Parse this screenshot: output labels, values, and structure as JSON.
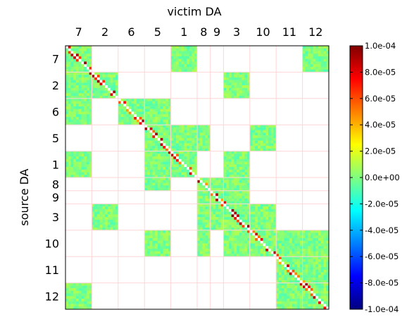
{
  "chart_data": {
    "type": "heatmap",
    "title": "",
    "xlabel": "victim DA",
    "ylabel": "source DA",
    "x_axis_position": "top",
    "order": [
      "7",
      "2",
      "6",
      "5",
      "1",
      "8",
      "9",
      "3",
      "10",
      "11",
      "12"
    ],
    "block_sizes": [
      10,
      10,
      10,
      10,
      10,
      5,
      5,
      10,
      10,
      10,
      10
    ],
    "blocks": [
      {
        "source": "7",
        "victims": [
          "7",
          "1",
          "12"
        ]
      },
      {
        "source": "2",
        "victims": [
          "7",
          "2",
          "3"
        ]
      },
      {
        "source": "6",
        "victims": [
          "7",
          "6",
          "5"
        ]
      },
      {
        "source": "5",
        "victims": [
          "5",
          "1",
          "8",
          "10"
        ]
      },
      {
        "source": "1",
        "victims": [
          "7",
          "5",
          "1",
          "3"
        ]
      },
      {
        "source": "8",
        "victims": [
          "5",
          "8",
          "9",
          "3"
        ]
      },
      {
        "source": "9",
        "victims": [
          "8",
          "9",
          "3"
        ]
      },
      {
        "source": "3",
        "victims": [
          "2",
          "8",
          "9",
          "3",
          "10"
        ]
      },
      {
        "source": "10",
        "victims": [
          "5",
          "8",
          "3",
          "10",
          "11",
          "12"
        ]
      },
      {
        "source": "11",
        "victims": [
          "11",
          "12"
        ]
      },
      {
        "source": "12",
        "victims": [
          "7",
          "11",
          "12"
        ]
      }
    ],
    "diagonal_value": null,
    "typical_value_range": [
      -1e-05,
      1e-05
    ],
    "colorbar": {
      "colormap": "jet",
      "vmin": -0.0001,
      "vmax": 0.0001,
      "tick_values": [
        0.0001,
        8e-05,
        6e-05,
        4e-05,
        2e-05,
        0,
        -2e-05,
        -4e-05,
        -6e-05,
        -8e-05,
        -0.0001
      ],
      "tick_labels": [
        "1.0e-04",
        "8.0e-05",
        "6.0e-05",
        "4.0e-05",
        "2.0e-05",
        "0.0e+00",
        "-2.0e-05",
        "-4.0e-05",
        "-6.0e-05",
        "-8.0e-05",
        "-1.0e-04"
      ]
    },
    "grid": true,
    "grid_color": "#ffd6d6"
  }
}
